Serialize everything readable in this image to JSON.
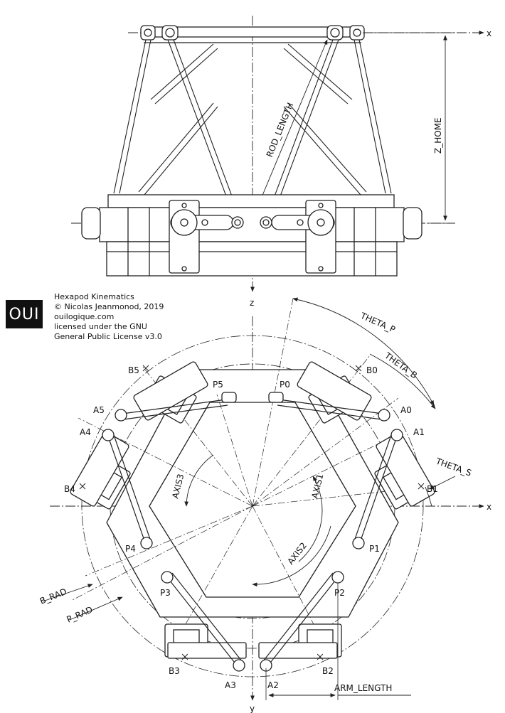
{
  "logo": {
    "text": "OUI"
  },
  "credits": {
    "lines": [
      "Hexapod Kinematics",
      "© Nicolas Jeanmonod, 2019",
      "ouilogique.com",
      "licensed under the GNU",
      "General Public License v3.0"
    ]
  },
  "side_view": {
    "axis_x": "x",
    "axis_z": "z",
    "rod_length": "ROD_LENGTH",
    "z_home": "Z_HOME"
  },
  "top_view": {
    "axis_x": "x",
    "axis_y": "y",
    "theta_p": "THETA_P",
    "theta_b": "THETA_B",
    "theta_s": "THETA_S",
    "axis1": "AXIS1",
    "axis2": "AXIS2",
    "axis3": "AXIS3",
    "b_rad": "B_RAD",
    "p_rad": "P_RAD",
    "arm_length": "ARM_LENGTH",
    "points": {
      "P0": "P0",
      "P1": "P1",
      "P2": "P2",
      "P3": "P3",
      "P4": "P4",
      "P5": "P5",
      "A0": "A0",
      "A1": "A1",
      "A2": "A2",
      "A3": "A3",
      "A4": "A4",
      "A5": "A5",
      "B0": "B0",
      "B1": "B1",
      "B2": "B2",
      "B3": "B3",
      "B4": "B4",
      "B5": "B5"
    }
  },
  "colors": {
    "ink": "#222222",
    "background": "#ffffff",
    "logo_bg": "#111111",
    "logo_fg": "#ffffff"
  }
}
